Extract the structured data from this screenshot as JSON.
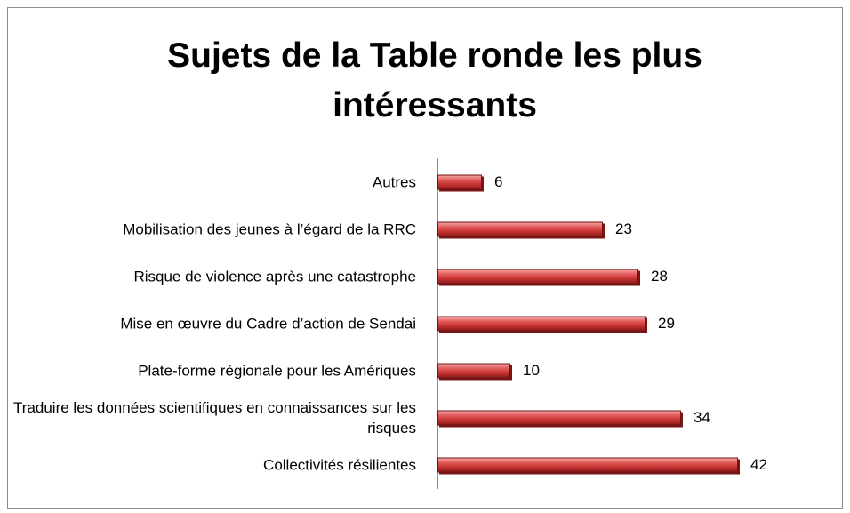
{
  "chart_data": {
    "type": "bar",
    "orientation": "horizontal",
    "title": "Sujets de la Table ronde les plus intéressants",
    "categories": [
      "Autres",
      "Mobilisation des jeunes à l’égard de la RRC",
      "Risque de violence après une catastrophe",
      "Mise en œuvre du Cadre d’action de Sendai",
      "Plate-forme régionale pour les Amériques",
      "Traduire les données scientifiques en connaissances sur les risques",
      "Collectivités résilientes"
    ],
    "values": [
      6,
      23,
      28,
      29,
      10,
      34,
      42
    ],
    "color": "#c0302f"
  }
}
